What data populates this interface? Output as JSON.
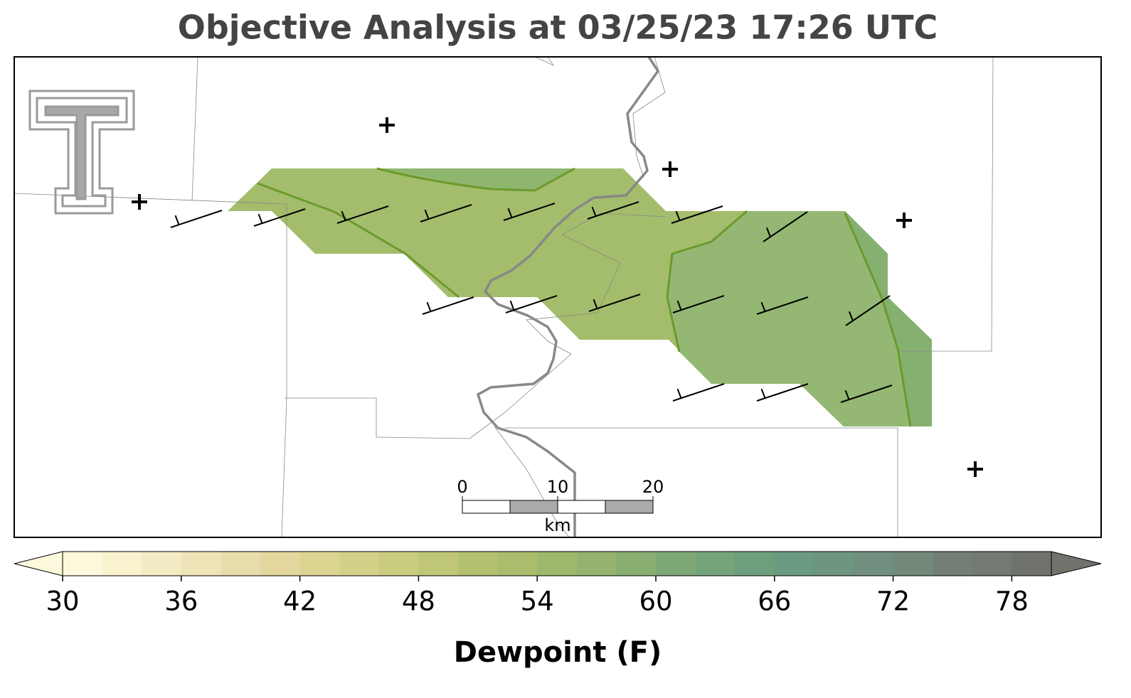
{
  "title": "Objective Analysis at 03/25/23 17:26 UTC",
  "colorbar": {
    "label": "Dewpoint (F)",
    "lim": [
      30,
      80
    ],
    "ticks": [
      30,
      36,
      42,
      48,
      54,
      60,
      66,
      72,
      78
    ],
    "colors": [
      "#fdf9dc",
      "#f8f2cf",
      "#f3ebc4",
      "#eee4b8",
      "#e9ddab",
      "#e3d79e",
      "#dcd592",
      "#d3d188",
      "#c9cc7f",
      "#bfc776",
      "#b4c26f",
      "#a9bd6d",
      "#9eb86d",
      "#93b36f",
      "#88ae72",
      "#7ea976",
      "#75a47a",
      "#6d9f7e",
      "#6a9a80",
      "#6d9580",
      "#718f7e",
      "#738a7b",
      "#737f76",
      "#727a72",
      "#6f736c"
    ]
  },
  "scale_bar": {
    "ticks": [
      0,
      10,
      20
    ],
    "unit": "km"
  }
}
